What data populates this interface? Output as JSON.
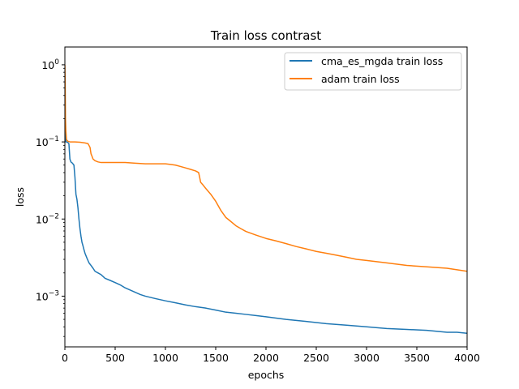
{
  "chart_data": {
    "type": "line",
    "title": "Train loss contrast",
    "xlabel": "epochs",
    "ylabel": "loss",
    "xlim": [
      0,
      4000
    ],
    "ylim": [
      0.00022,
      1.7
    ],
    "yscale": "log",
    "grid": false,
    "legend_position": "top-right",
    "x_ticks": [
      0,
      500,
      1000,
      1500,
      2000,
      2500,
      3000,
      3500,
      4000
    ],
    "x_tick_labels": [
      "0",
      "500",
      "1000",
      "1500",
      "2000",
      "2500",
      "3000",
      "3500",
      "4000"
    ],
    "y_ticks": [
      0.001,
      0.01,
      0.1,
      1
    ],
    "y_tick_labels": [
      {
        "base": "10",
        "exp": "−3"
      },
      {
        "base": "10",
        "exp": "−2"
      },
      {
        "base": "10",
        "exp": "−1"
      },
      {
        "base": "10",
        "exp": "0"
      }
    ],
    "series": [
      {
        "name": "cma_es_mgda train loss",
        "color": "#1f77b4",
        "x": [
          0,
          5,
          10,
          20,
          30,
          40,
          50,
          60,
          75,
          90,
          100,
          110,
          120,
          130,
          140,
          150,
          160,
          170,
          180,
          190,
          200,
          220,
          240,
          260,
          280,
          300,
          330,
          360,
          400,
          450,
          500,
          550,
          600,
          650,
          700,
          750,
          800,
          900,
          1000,
          1100,
          1200,
          1300,
          1400,
          1500,
          1600,
          1700,
          1800,
          1900,
          2000,
          2200,
          2400,
          2600,
          2800,
          3000,
          3200,
          3400,
          3600,
          3800,
          3900,
          4000
        ],
        "y": [
          0.3,
          0.12,
          0.1,
          0.1,
          0.098,
          0.095,
          0.06,
          0.055,
          0.053,
          0.05,
          0.035,
          0.021,
          0.018,
          0.014,
          0.01,
          0.0075,
          0.006,
          0.005,
          0.0045,
          0.004,
          0.0036,
          0.0031,
          0.0027,
          0.0025,
          0.0023,
          0.0021,
          0.002,
          0.0019,
          0.0017,
          0.0016,
          0.0015,
          0.0014,
          0.00128,
          0.0012,
          0.00112,
          0.00105,
          0.001,
          0.00093,
          0.00087,
          0.00082,
          0.00077,
          0.00073,
          0.0007,
          0.00066,
          0.00062,
          0.0006,
          0.00058,
          0.00056,
          0.00054,
          0.0005,
          0.00047,
          0.00044,
          0.00042,
          0.0004,
          0.00038,
          0.00037,
          0.00036,
          0.00034,
          0.00034,
          0.00033
        ]
      },
      {
        "name": "adam train loss",
        "color": "#ff7f0e",
        "x": [
          0,
          3,
          6,
          10,
          15,
          20,
          30,
          50,
          100,
          150,
          200,
          230,
          250,
          260,
          270,
          280,
          300,
          330,
          360,
          400,
          500,
          600,
          700,
          800,
          900,
          1000,
          1050,
          1100,
          1150,
          1200,
          1250,
          1300,
          1330,
          1340,
          1350,
          1370,
          1400,
          1450,
          1500,
          1550,
          1600,
          1650,
          1700,
          1750,
          1800,
          1900,
          2000,
          2100,
          2200,
          2300,
          2400,
          2500,
          2600,
          2700,
          2800,
          2900,
          3000,
          3200,
          3400,
          3600,
          3800,
          3900,
          4000
        ],
        "y": [
          1.0,
          0.6,
          0.2,
          0.14,
          0.11,
          0.105,
          0.102,
          0.1,
          0.1,
          0.099,
          0.097,
          0.095,
          0.085,
          0.07,
          0.065,
          0.06,
          0.057,
          0.055,
          0.054,
          0.054,
          0.054,
          0.054,
          0.053,
          0.052,
          0.052,
          0.052,
          0.051,
          0.05,
          0.048,
          0.046,
          0.044,
          0.042,
          0.04,
          0.035,
          0.03,
          0.028,
          0.025,
          0.021,
          0.017,
          0.013,
          0.0105,
          0.0093,
          0.0082,
          0.0075,
          0.0069,
          0.0062,
          0.0056,
          0.0052,
          0.0048,
          0.0044,
          0.0041,
          0.0038,
          0.0036,
          0.0034,
          0.0032,
          0.003,
          0.0029,
          0.0027,
          0.0025,
          0.0024,
          0.0023,
          0.0022,
          0.0021
        ]
      }
    ]
  }
}
